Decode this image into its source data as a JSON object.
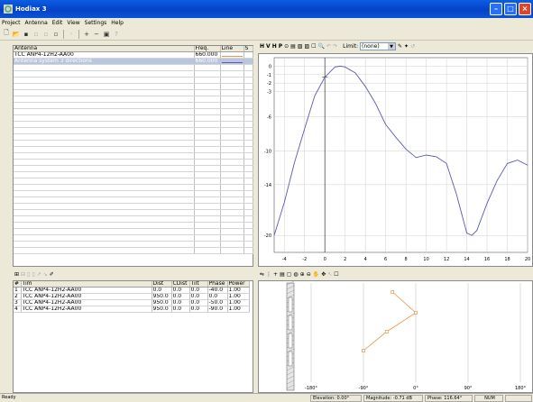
{
  "app": {
    "title": "Hodiax 3"
  },
  "menu": [
    "Project",
    "Antenna",
    "Edit",
    "View",
    "Settings",
    "Help"
  ],
  "antenna_table": {
    "headers": [
      "Antenna",
      "Freq.",
      "Line",
      "S"
    ],
    "rows": [
      {
        "antenna": "TCC ANP4-12H2-AA00",
        "freq": "660.000",
        "line_color": "#e8954a"
      },
      {
        "antenna": "Antenna system 3 directions",
        "freq": "660.000",
        "line_color": "#5a5ab0"
      }
    ]
  },
  "chart_toolbar": {
    "limit_label": "Limit:",
    "limit_value": "(none)"
  },
  "elements_table": {
    "headers": [
      "#",
      "Tim",
      "Dist",
      "CDist",
      "Tilt",
      "Phase",
      "Power"
    ],
    "rows": [
      [
        "1",
        "TCC ANP4-12H2-AA00",
        "0.0",
        "0.0",
        "0.0",
        "-40.0",
        "1.00"
      ],
      [
        "2",
        "TCC ANP4-12H2-AA00",
        "950.0",
        "0.0",
        "0.0",
        "0.0",
        "1.00"
      ],
      [
        "3",
        "TCC ANP4-12H2-AA00",
        "950.0",
        "0.0",
        "0.0",
        "-50.0",
        "1.00"
      ],
      [
        "4",
        "TCC ANP4-12H2-AA00",
        "950.0",
        "0.0",
        "0.0",
        "-90.0",
        "1.00"
      ]
    ]
  },
  "chart_data": {
    "type": "line",
    "title": "",
    "xlabel": "",
    "ylabel": "",
    "xlim": [
      -5,
      20
    ],
    "ylim": [
      -22,
      1
    ],
    "x_ticks": [
      -4,
      -2,
      0,
      2,
      4,
      6,
      8,
      10,
      12,
      14,
      16,
      18,
      20
    ],
    "y_ticks": [
      0,
      -1,
      -2,
      -3,
      -6,
      -10,
      -14,
      -20
    ],
    "grid": true,
    "series": [
      {
        "color": "#5a5ab0",
        "x": [
          -5,
          -4,
          -3,
          -2,
          -1,
          0,
          1,
          1.5,
          2,
          3,
          4,
          5,
          6,
          7,
          8,
          9,
          10,
          11,
          12,
          13,
          14,
          14.5,
          15,
          16,
          17,
          18,
          19,
          20
        ],
        "y": [
          -20,
          -16.1,
          -11.4,
          -7.4,
          -3.5,
          -1.3,
          -0.1,
          0,
          -0.1,
          -0.8,
          -2.4,
          -4.4,
          -6.9,
          -8.4,
          -9.8,
          -10.8,
          -10.5,
          -10.7,
          -11.5,
          -15.2,
          -19.7,
          -20,
          -19.4,
          -16.2,
          -13.5,
          -11.5,
          -11.1,
          -11.7
        ]
      }
    ]
  },
  "phase_plot": {
    "x_labels": [
      "-180°",
      "-90°",
      "0°",
      "90°",
      "180°"
    ],
    "points": [
      {
        "phase": -40
      },
      {
        "phase": 0
      },
      {
        "phase": -50
      },
      {
        "phase": -90
      }
    ],
    "line_color": "#e8954a"
  },
  "status": {
    "ready": "Ready",
    "elevation": "Elevation:  0.00°",
    "magnitude": "Magnitude:  -0.71 dB",
    "phase": "Phase:  116.64°",
    "num": "NUM"
  }
}
